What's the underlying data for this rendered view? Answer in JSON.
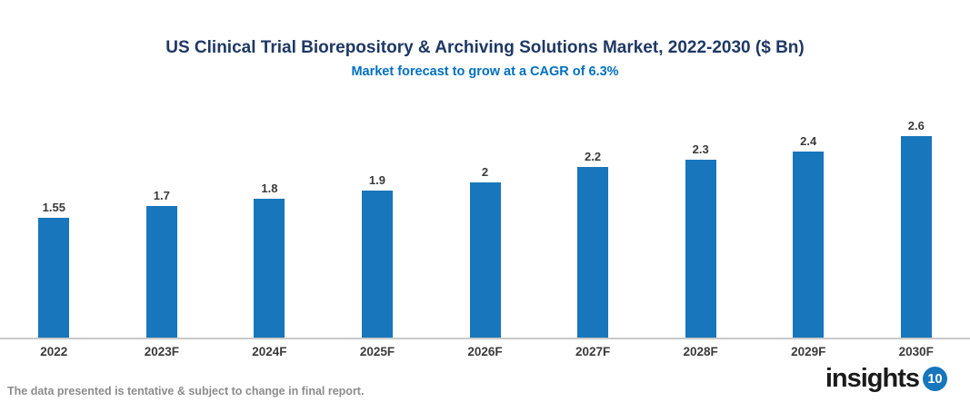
{
  "chart_data": {
    "type": "bar",
    "title": "US Clinical Trial Biorepository & Archiving Solutions Market, 2022-2030 ($ Bn)",
    "subtitle": "Market forecast to grow at a CAGR of 6.3%",
    "categories": [
      "2022",
      "2023F",
      "2024F",
      "2025F",
      "2026F",
      "2027F",
      "2028F",
      "2029F",
      "2030F"
    ],
    "values": [
      1.55,
      1.7,
      1.8,
      1.9,
      2,
      2.2,
      2.3,
      2.4,
      2.6
    ],
    "labels": [
      "1.55",
      "1.7",
      "1.8",
      "1.9",
      "2",
      "2.2",
      "2.3",
      "2.4",
      "2.6"
    ],
    "xlabel": "",
    "ylabel": "",
    "ylim": [
      0,
      2.8
    ],
    "grid": false,
    "legend": "none",
    "data_labels": "above-bars"
  },
  "footer": {
    "note": "The data presented is tentative & subject to change in final report.",
    "logo_text": "insights",
    "logo_badge": "10"
  },
  "colors": {
    "title_color": "#1F3864",
    "subtitle_color": "#0070C0",
    "bar_color": "#1776BC",
    "label_color": "#3A3A3A",
    "axis_line_color": "#C9C9C9",
    "footer_color": "#8C8C8C",
    "logo_badge_color": "#1776BC"
  }
}
